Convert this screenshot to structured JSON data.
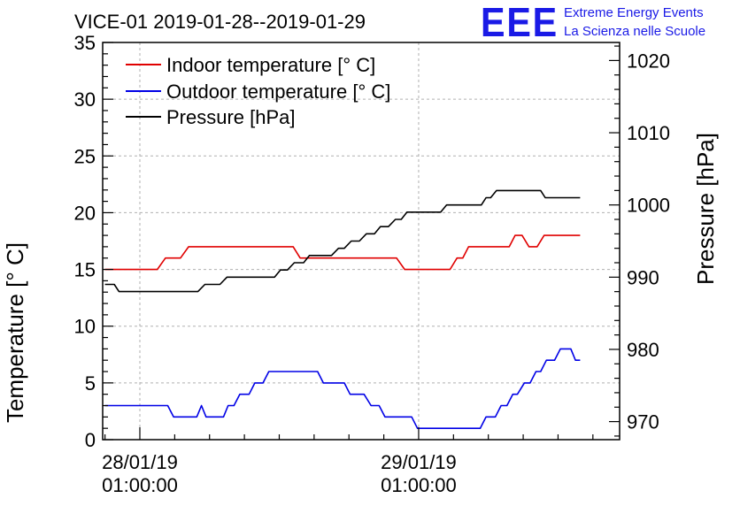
{
  "chart_data": {
    "type": "line",
    "title": "VICE-01 2019-01-28--2019-01-29",
    "ylabel": "Temperature [° C]",
    "y2label": "Pressure [hPa]",
    "ylim": [
      0,
      35
    ],
    "y2lim": [
      967.5,
      1022.5
    ],
    "xlim": [
      -3.2,
      41.3
    ],
    "yticks": [
      0,
      5,
      10,
      15,
      20,
      25,
      30,
      35
    ],
    "y2ticks": [
      970,
      980,
      990,
      1000,
      1010,
      1020
    ],
    "xticks": [
      {
        "x": 0,
        "line1": "28/01/19",
        "line2": "01:00:00"
      },
      {
        "x": 24,
        "line1": "29/01/19",
        "line2": "01:00:00"
      }
    ],
    "legend_position": "top-left",
    "grid": true,
    "series": [
      {
        "name": "Indoor temperature [° C]",
        "color": "#e00000",
        "axis": "left",
        "points": [
          [
            -3,
            15
          ],
          [
            1.5,
            15
          ],
          [
            2.2,
            16
          ],
          [
            3.5,
            16
          ],
          [
            4.2,
            17
          ],
          [
            13.2,
            17
          ],
          [
            13.8,
            16
          ],
          [
            22.1,
            16
          ],
          [
            22.8,
            15
          ],
          [
            26.7,
            15
          ],
          [
            27.3,
            16
          ],
          [
            27.8,
            16
          ],
          [
            28.3,
            17
          ],
          [
            31.8,
            17
          ],
          [
            32.3,
            18
          ],
          [
            32.9,
            18
          ],
          [
            33.5,
            17
          ],
          [
            34.2,
            17
          ],
          [
            34.8,
            18
          ],
          [
            37.9,
            18
          ]
        ]
      },
      {
        "name": "Outdoor temperature [° C]",
        "color": "#0000e6",
        "axis": "left",
        "points": [
          [
            -3,
            3
          ],
          [
            2.4,
            3
          ],
          [
            2.9,
            2
          ],
          [
            4.9,
            2
          ],
          [
            5.3,
            3
          ],
          [
            5.7,
            2
          ],
          [
            7.2,
            2
          ],
          [
            7.6,
            3
          ],
          [
            8.1,
            3
          ],
          [
            8.6,
            4
          ],
          [
            9.4,
            4
          ],
          [
            9.9,
            5
          ],
          [
            10.6,
            5
          ],
          [
            11.1,
            6
          ],
          [
            15.3,
            6
          ],
          [
            15.8,
            5
          ],
          [
            17.6,
            5
          ],
          [
            18.1,
            4
          ],
          [
            19.3,
            4
          ],
          [
            19.9,
            3
          ],
          [
            20.6,
            3
          ],
          [
            21.1,
            2
          ],
          [
            23.4,
            2
          ],
          [
            23.9,
            1
          ],
          [
            29.3,
            1
          ],
          [
            29.8,
            2
          ],
          [
            30.6,
            2
          ],
          [
            31.1,
            3
          ],
          [
            31.6,
            3
          ],
          [
            32.1,
            4
          ],
          [
            32.5,
            4
          ],
          [
            33.1,
            5
          ],
          [
            33.6,
            5
          ],
          [
            34.1,
            6
          ],
          [
            34.5,
            6
          ],
          [
            35.0,
            7
          ],
          [
            35.7,
            7
          ],
          [
            36.2,
            8
          ],
          [
            37.1,
            8
          ],
          [
            37.5,
            7
          ],
          [
            37.9,
            7
          ]
        ]
      },
      {
        "name": "Pressure [hPa]",
        "color": "#000000",
        "axis": "right",
        "points": [
          [
            -3,
            989
          ],
          [
            -2.2,
            989
          ],
          [
            -1.8,
            988
          ],
          [
            5.0,
            988
          ],
          [
            5.6,
            989
          ],
          [
            6.9,
            989
          ],
          [
            7.5,
            990
          ],
          [
            11.6,
            990
          ],
          [
            12.1,
            991
          ],
          [
            12.7,
            991
          ],
          [
            13.3,
            992
          ],
          [
            14.1,
            992
          ],
          [
            14.6,
            993
          ],
          [
            16.5,
            993
          ],
          [
            17.1,
            994
          ],
          [
            17.6,
            994
          ],
          [
            18.2,
            995
          ],
          [
            18.9,
            995
          ],
          [
            19.5,
            996
          ],
          [
            20.2,
            996
          ],
          [
            20.7,
            997
          ],
          [
            21.4,
            997
          ],
          [
            22.0,
            998
          ],
          [
            22.5,
            998
          ],
          [
            23.0,
            999
          ],
          [
            25.9,
            999
          ],
          [
            26.4,
            1000
          ],
          [
            29.4,
            1000
          ],
          [
            29.8,
            1001
          ],
          [
            30.2,
            1001
          ],
          [
            30.7,
            1002
          ],
          [
            34.5,
            1002
          ],
          [
            34.9,
            1001
          ],
          [
            37.9,
            1001
          ]
        ]
      }
    ]
  },
  "logo": {
    "mark": "EEE",
    "line1": "Extreme Energy Events",
    "line2": "La Scienza nelle Scuole"
  }
}
